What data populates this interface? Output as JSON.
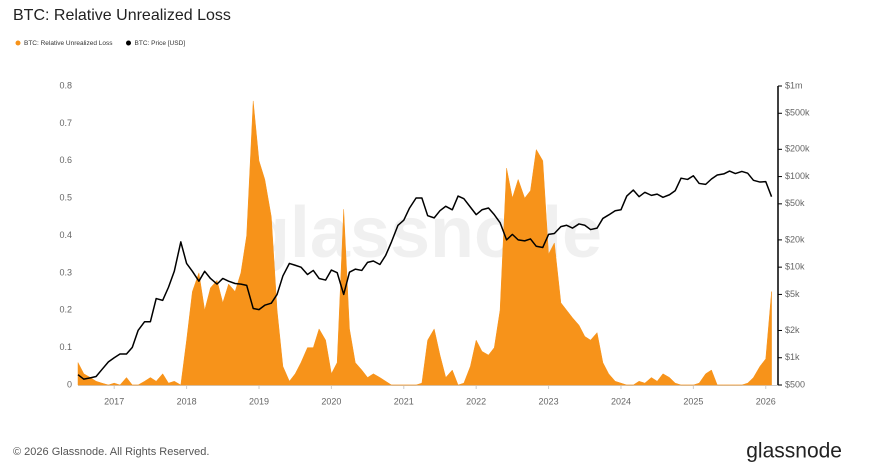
{
  "chart_data": {
    "type": "area",
    "title": "BTC: Relative Unrealized Loss",
    "watermark": "glassnode",
    "footer": "© 2026 Glassnode. All Rights Reserved.",
    "brand": "glassnode",
    "x": [
      2016.5,
      2016.58,
      2016.67,
      2016.75,
      2016.83,
      2016.92,
      2017,
      2017.08,
      2017.17,
      2017.25,
      2017.33,
      2017.42,
      2017.5,
      2017.58,
      2017.67,
      2017.75,
      2017.83,
      2017.92,
      2018,
      2018.08,
      2018.17,
      2018.25,
      2018.33,
      2018.42,
      2018.5,
      2018.58,
      2018.67,
      2018.75,
      2018.83,
      2018.92,
      2019,
      2019.08,
      2019.17,
      2019.25,
      2019.33,
      2019.42,
      2019.5,
      2019.58,
      2019.67,
      2019.75,
      2019.83,
      2019.92,
      2020,
      2020.08,
      2020.17,
      2020.25,
      2020.33,
      2020.42,
      2020.5,
      2020.58,
      2020.67,
      2020.75,
      2020.83,
      2020.92,
      2021,
      2021.08,
      2021.17,
      2021.25,
      2021.33,
      2021.42,
      2021.5,
      2021.58,
      2021.67,
      2021.75,
      2021.83,
      2021.92,
      2022,
      2022.08,
      2022.17,
      2022.25,
      2022.33,
      2022.42,
      2022.5,
      2022.58,
      2022.67,
      2022.75,
      2022.83,
      2022.92,
      2023,
      2023.08,
      2023.17,
      2023.25,
      2023.33,
      2023.42,
      2023.5,
      2023.58,
      2023.67,
      2023.75,
      2023.83,
      2023.92,
      2024,
      2024.08,
      2024.17,
      2024.25,
      2024.33,
      2024.42,
      2024.5,
      2024.58,
      2024.67,
      2024.75,
      2024.83,
      2024.92,
      2025,
      2025.08,
      2025.17,
      2025.25,
      2025.33,
      2025.42,
      2025.5,
      2025.58,
      2025.67,
      2025.75,
      2025.83,
      2025.92,
      2026,
      2026.08
    ],
    "series": [
      {
        "name": "BTC: Relative Unrealized Loss",
        "type": "area",
        "color": "#f7931a",
        "values": [
          0.06,
          0.03,
          0.02,
          0.01,
          0.005,
          0,
          0.005,
          0,
          0.02,
          0,
          0,
          0.01,
          0.02,
          0.01,
          0.03,
          0.005,
          0.01,
          0,
          0.12,
          0.25,
          0.3,
          0.2,
          0.26,
          0.28,
          0.22,
          0.27,
          0.25,
          0.3,
          0.4,
          0.76,
          0.6,
          0.55,
          0.45,
          0.2,
          0.05,
          0.01,
          0.03,
          0.06,
          0.1,
          0.1,
          0.15,
          0.12,
          0.03,
          0.06,
          0.47,
          0.15,
          0.06,
          0.04,
          0.02,
          0.03,
          0.02,
          0.01,
          0,
          0,
          0,
          0,
          0,
          0.005,
          0.12,
          0.15,
          0.08,
          0.02,
          0.04,
          0,
          0.005,
          0.05,
          0.12,
          0.09,
          0.08,
          0.1,
          0.2,
          0.58,
          0.5,
          0.55,
          0.5,
          0.52,
          0.63,
          0.6,
          0.35,
          0.38,
          0.22,
          0.2,
          0.18,
          0.16,
          0.13,
          0.12,
          0.14,
          0.06,
          0.03,
          0.01,
          0.005,
          0,
          0,
          0.01,
          0.005,
          0.02,
          0.01,
          0.03,
          0.02,
          0.005,
          0,
          0,
          0,
          0.005,
          0.03,
          0.04,
          0,
          0,
          0,
          0,
          0,
          0.005,
          0.02,
          0.05,
          0.07,
          0.25
        ]
      },
      {
        "name": "BTC: Price [USD]",
        "type": "line",
        "axis": "y2",
        "color": "#000000",
        "values": [
          650,
          580,
          600,
          620,
          740,
          900,
          1000,
          1100,
          1100,
          1300,
          2000,
          2500,
          2500,
          4500,
          4300,
          6000,
          9000,
          19000,
          11000,
          9000,
          7000,
          9000,
          7500,
          6500,
          7500,
          7000,
          6600,
          6500,
          6300,
          3500,
          3400,
          3800,
          4000,
          5000,
          8000,
          11000,
          10500,
          10000,
          8300,
          9200,
          7500,
          7200,
          9300,
          8700,
          5000,
          8800,
          9500,
          9200,
          11300,
          11700,
          10700,
          13500,
          19000,
          29000,
          33000,
          45000,
          58000,
          58000,
          37000,
          35000,
          42000,
          47000,
          43000,
          61000,
          57000,
          46000,
          38000,
          43000,
          45000,
          38000,
          31000,
          20000,
          23000,
          20000,
          19500,
          20500,
          17000,
          16500,
          23000,
          23500,
          28000,
          29000,
          27000,
          30000,
          29000,
          26000,
          27000,
          34500,
          37700,
          42000,
          43000,
          61000,
          71000,
          60000,
          67000,
          62000,
          64000,
          59000,
          63000,
          70000,
          96000,
          93000,
          102000,
          84000,
          82000,
          94000,
          104000,
          107000,
          115000,
          108000,
          114000,
          109000,
          91000,
          87000,
          88000,
          60000
        ]
      }
    ],
    "xlim": [
      2016.5,
      2026.1
    ],
    "xticks": [
      2017,
      2018,
      2019,
      2020,
      2021,
      2022,
      2023,
      2024,
      2025,
      2026
    ],
    "ylim": [
      0,
      0.8
    ],
    "yticks": [
      0,
      0.1,
      0.2,
      0.3,
      0.4,
      0.5,
      0.6,
      0.7,
      0.8
    ],
    "y2lim": [
      500,
      1000000
    ],
    "y2log": true,
    "y2ticks": [
      {
        "value": 500,
        "label": "$500"
      },
      {
        "value": 1000,
        "label": "$1k"
      },
      {
        "value": 2000,
        "label": "$2k"
      },
      {
        "value": 5000,
        "label": "$5k"
      },
      {
        "value": 10000,
        "label": "$10k"
      },
      {
        "value": 20000,
        "label": "$20k"
      },
      {
        "value": 50000,
        "label": "$50k"
      },
      {
        "value": 100000,
        "label": "$100k"
      },
      {
        "value": 200000,
        "label": "$200k"
      },
      {
        "value": 500000,
        "label": "$500k"
      },
      {
        "value": 1000000,
        "label": "$1m"
      }
    ]
  }
}
